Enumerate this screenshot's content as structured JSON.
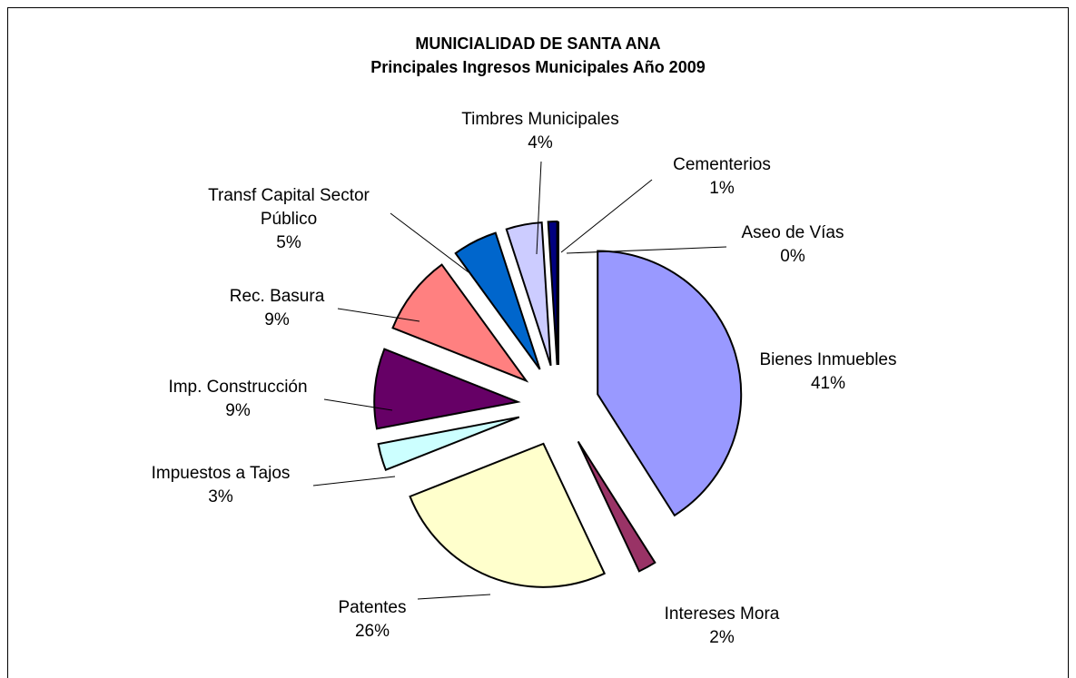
{
  "chart_data": {
    "type": "pie",
    "title": "MUNICIALIDAD DE SANTA ANA",
    "subtitle": "Principales Ingresos Municipales Año 2009",
    "categories": [
      "Bienes Inmuebles",
      "Intereses Mora",
      "Patentes",
      "Impuestos a Tajos",
      "Imp. Construcción",
      "Rec. Basura",
      "Transf Capital Sector Público",
      "Timbres Municipales",
      "Cementerios",
      "Aseo de Vías"
    ],
    "values": [
      41,
      2,
      26,
      3,
      9,
      9,
      5,
      4,
      1,
      0
    ],
    "value_labels": [
      "41%",
      "2%",
      "26%",
      "3%",
      "9%",
      "9%",
      "5%",
      "4%",
      "1%",
      "0%"
    ],
    "colors": [
      "#9999ff",
      "#993366",
      "#ffffcc",
      "#ccffff",
      "#660066",
      "#ff8080",
      "#0066cc",
      "#ccccff",
      "#000080",
      "#000000"
    ]
  }
}
